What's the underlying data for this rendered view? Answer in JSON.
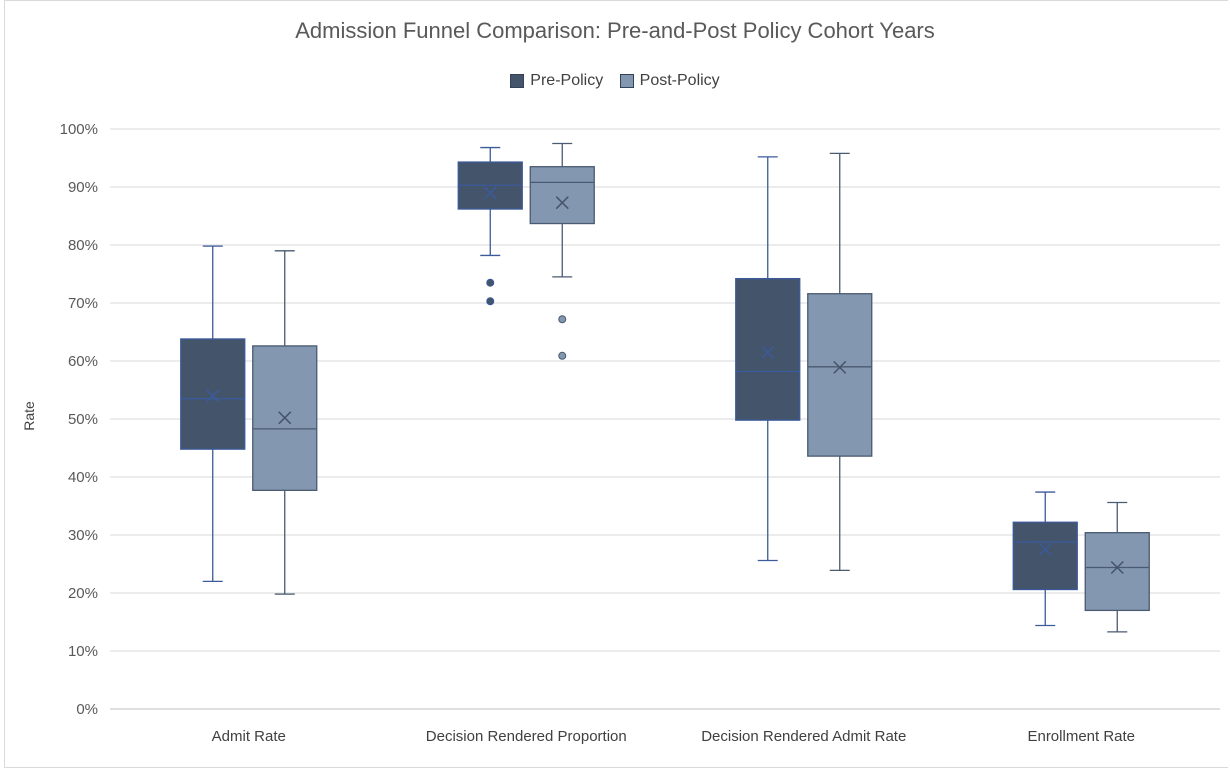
{
  "chart_data": {
    "type": "boxplot",
    "title": "Admission Funnel Comparison: Pre-and-Post Policy Cohort Years",
    "xlabel": "",
    "ylabel": "Rate",
    "ylim": [
      0,
      100
    ],
    "yticks": [
      "0%",
      "10%",
      "20%",
      "30%",
      "40%",
      "50%",
      "60%",
      "70%",
      "80%",
      "90%",
      "100%"
    ],
    "grid": true,
    "legend_position": "top",
    "categories": [
      "Admit Rate",
      "Decision Rendered Proportion",
      "Decision Rendered Admit Rate",
      "Enrollment Rate"
    ],
    "series": [
      {
        "name": "Pre-Policy",
        "color": "#44546a",
        "boxes": [
          {
            "min": 22,
            "q1": 44.8,
            "median": 53.5,
            "q3": 63.8,
            "max": 79.8,
            "mean": 54,
            "outliers": []
          },
          {
            "min": 78.2,
            "q1": 86.2,
            "median": 90.3,
            "q3": 94.3,
            "max": 96.8,
            "mean": 89,
            "outliers": [
              73.5,
              70.3
            ]
          },
          {
            "min": 25.6,
            "q1": 49.8,
            "median": 58.2,
            "q3": 74.2,
            "max": 95.2,
            "mean": 61.5,
            "outliers": []
          },
          {
            "min": 14.4,
            "q1": 20.6,
            "median": 28.8,
            "q3": 32.2,
            "max": 37.4,
            "mean": 27.5,
            "outliers": []
          }
        ]
      },
      {
        "name": "Post-Policy",
        "color": "#8497b0",
        "boxes": [
          {
            "min": 19.8,
            "q1": 37.7,
            "median": 48.3,
            "q3": 62.6,
            "max": 79,
            "mean": 50.2,
            "outliers": []
          },
          {
            "min": 74.5,
            "q1": 83.7,
            "median": 90.8,
            "q3": 93.5,
            "max": 97.5,
            "mean": 87.3,
            "outliers": [
              67.2,
              60.9
            ]
          },
          {
            "min": 23.9,
            "q1": 43.6,
            "median": 59,
            "q3": 71.6,
            "max": 95.8,
            "mean": 58.9,
            "outliers": []
          },
          {
            "min": 13.3,
            "q1": 17,
            "median": 24.4,
            "q3": 30.4,
            "max": 35.6,
            "mean": 24.4,
            "outliers": []
          }
        ]
      }
    ]
  }
}
